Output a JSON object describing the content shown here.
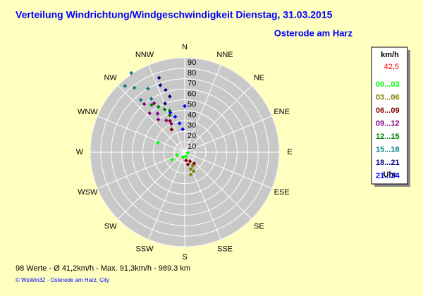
{
  "chart_data": {
    "type": "polar-scatter",
    "title": "Verteilung Windrichtung/Windgeschwindigkeit  Dienstag, 31.03.2015",
    "subtitle": "Osterode am Harz",
    "directions": [
      "N",
      "NNE",
      "NE",
      "ENE",
      "E",
      "ESE",
      "SE",
      "SSE",
      "S",
      "SSW",
      "SW",
      "WSW",
      "W",
      "WNW",
      "NW",
      "NNW"
    ],
    "rlim": [
      0,
      90
    ],
    "rticks": [
      10,
      20,
      30,
      40,
      50,
      60,
      70,
      80,
      90
    ],
    "legend": {
      "unit": "km/h",
      "current": "42,5",
      "footer": "Uhr"
    },
    "series": [
      {
        "name": "00...03",
        "color": "#00ff00",
        "theta": [
          250,
          240,
          290,
          200,
          160,
          100
        ],
        "values": [
          8,
          14,
          27,
          5,
          4,
          3
        ]
      },
      {
        "name": "03...06",
        "color": "#808000",
        "theta": [
          160,
          155,
          165,
          150
        ],
        "values": [
          17,
          20,
          22,
          15
        ]
      },
      {
        "name": "06...09",
        "color": "#800000",
        "theta": [
          150,
          165,
          140,
          170,
          330,
          335
        ],
        "values": [
          10,
          12,
          14,
          8,
          25,
          33
        ]
      },
      {
        "name": "09...12",
        "color": "#800080",
        "theta": [
          321,
          325,
          330,
          318,
          328,
          335,
          320
        ],
        "values": [
          40,
          45,
          35,
          50,
          55,
          30,
          60
        ]
      },
      {
        "name": "12...15",
        "color": "#008000",
        "theta": [
          335,
          330,
          338,
          325,
          340
        ],
        "values": [
          45,
          50,
          38,
          55,
          42
        ]
      },
      {
        "name": "15...18",
        "color": "#008080",
        "theta": [
          326,
          322,
          318,
          330,
          320,
          328
        ],
        "values": [
          91,
          78,
          85,
          70,
          65,
          60
        ]
      },
      {
        "name": "18...21",
        "color": "#000080",
        "theta": [
          341,
          340,
          345,
          343,
          338
        ],
        "values": [
          75,
          68,
          55,
          62,
          50
        ]
      },
      {
        "name": "21...24",
        "color": "#0000ff",
        "theta": [
          0,
          345,
          350,
          340,
          355
        ],
        "values": [
          44,
          35,
          28,
          40,
          22
        ]
      }
    ],
    "footer": "98 Werte   -   Ø 41,2km/h   -   Max. 91,3km/h   -   989.3 km",
    "credit": "© WsWin32  -  Osterode am Harz, City"
  }
}
